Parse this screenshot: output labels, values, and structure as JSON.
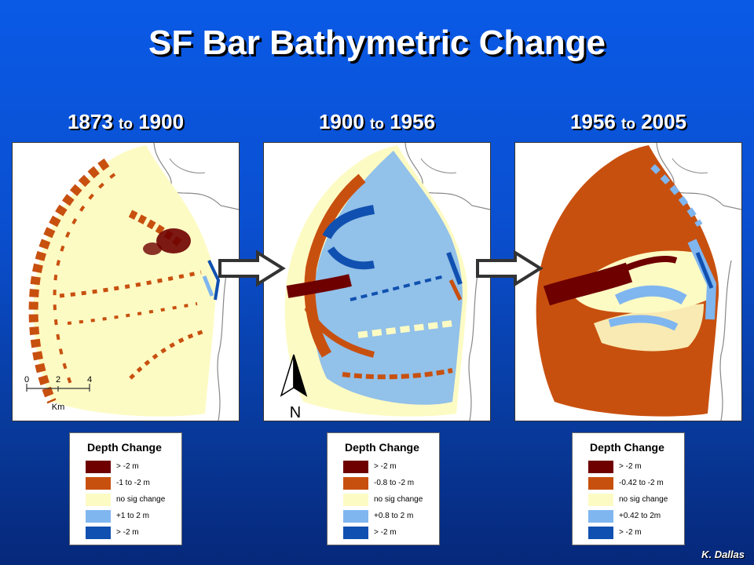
{
  "title": "SF Bar Bathymetric Change",
  "panels": [
    {
      "start": "1873",
      "to": "to",
      "end": "1900",
      "legend": {
        "title": "Depth Change",
        "items": [
          "> -2 m",
          "-1 to -2 m",
          "no sig change",
          "+1 to 2 m",
          "> -2 m"
        ]
      }
    },
    {
      "start": "1900",
      "to": "to",
      "end": "1956",
      "legend": {
        "title": "Depth Change",
        "items": [
          "> -2 m",
          "-0.8 to -2 m",
          "no sig change",
          "+0.8 to 2 m",
          "> -2 m"
        ]
      }
    },
    {
      "start": "1956",
      "to": "to",
      "end": "2005",
      "legend": {
        "title": "Depth Change",
        "items": [
          "> -2 m",
          "-0.42 to -2 m",
          "no sig change",
          "+0.42 to 2m",
          "> -2 m"
        ]
      }
    }
  ],
  "scale_bar": {
    "ticks": [
      "0",
      "2",
      "4"
    ],
    "unit": "Km"
  },
  "north_arrow": {
    "label": "N"
  },
  "credit": "K. Dallas",
  "colors": {
    "deep_erosion": "#6e0000",
    "erosion": "#c8500f",
    "no_change": "#fdfbc4",
    "accretion": "#7fb6f0",
    "deep_accretion": "#1050b0",
    "background_top": "#0a5ae6",
    "background_bottom": "#06287a"
  }
}
